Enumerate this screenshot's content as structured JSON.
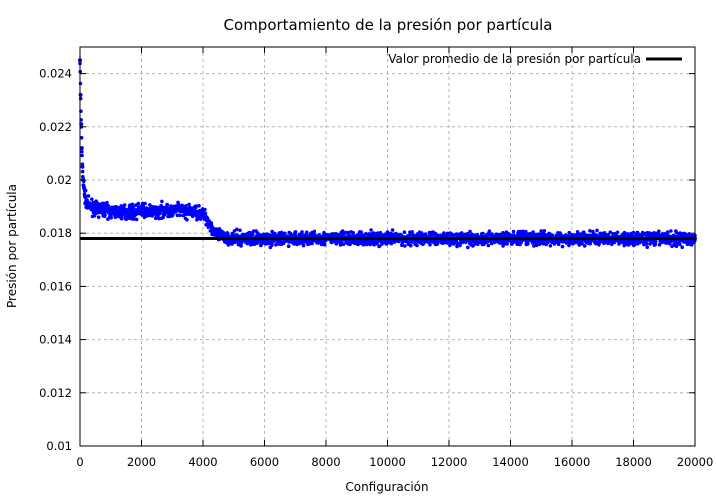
{
  "chart_data": {
    "type": "scatter",
    "title": "Comportamiento de la presión por partícula",
    "xlabel": "Configuración",
    "ylabel": "Presión por partícula",
    "xlim": [
      0,
      20000
    ],
    "ylim": [
      0.01,
      0.025
    ],
    "x_ticks": [
      "0",
      "2000",
      "4000",
      "6000",
      "8000",
      "10000",
      "12000",
      "14000",
      "16000",
      "18000",
      "20000"
    ],
    "y_ticks": [
      "0.01",
      "0.012",
      "0.014",
      "0.016",
      "0.018",
      "0.02",
      "0.022",
      "0.024"
    ],
    "grid": true,
    "legend_position": "top-right",
    "series": [
      {
        "name": "",
        "kind": "points",
        "color": "#0000ff",
        "x": [
          0,
          20,
          40,
          60,
          80,
          100,
          130,
          160,
          200,
          250,
          300,
          400,
          500,
          600,
          800,
          1000,
          1200,
          1500,
          1800,
          2000,
          2200,
          2500,
          2800,
          3000,
          3200,
          3500,
          3800,
          4000,
          4100,
          4200,
          4300,
          4400,
          4500,
          5000,
          6000,
          7000,
          8000,
          9000,
          10000,
          11000,
          12000,
          13000,
          14000,
          15000,
          16000,
          17000,
          18000,
          19000,
          20000
        ],
        "y": [
          0.0245,
          0.0232,
          0.0221,
          0.0212,
          0.0205,
          0.02,
          0.0197,
          0.0194,
          0.0192,
          0.0191,
          0.019,
          0.019,
          0.0189,
          0.0189,
          0.0189,
          0.0188,
          0.0188,
          0.0188,
          0.0188,
          0.0189,
          0.0188,
          0.0188,
          0.0189,
          0.0188,
          0.0189,
          0.0188,
          0.0188,
          0.0187,
          0.0186,
          0.0184,
          0.0182,
          0.018,
          0.0179,
          0.0178,
          0.0178,
          0.0178,
          0.0178,
          0.0178,
          0.0178,
          0.0178,
          0.0178,
          0.0178,
          0.0178,
          0.0178,
          0.0178,
          0.0178,
          0.0178,
          0.0178,
          0.0178
        ],
        "noise_band": [
          0.0003,
          0.0003,
          0.0003,
          0.0003,
          0.0003,
          0.0003,
          0.0003,
          0.0003,
          0.0003,
          0.0003,
          0.0003,
          0.0003,
          0.0003,
          0.0003,
          0.0003,
          0.0003,
          0.0003,
          0.0003,
          0.0003,
          0.0003,
          0.0003,
          0.0003,
          0.0003,
          0.0003,
          0.0003,
          0.0003,
          0.0003,
          0.0003,
          0.0003,
          0.0003,
          0.0003,
          0.0003,
          0.0003,
          0.0003,
          0.0003,
          0.0003,
          0.0003,
          0.0003,
          0.0003,
          0.0003,
          0.0003,
          0.0003,
          0.0003,
          0.0003,
          0.0003,
          0.0003,
          0.0003,
          0.0003,
          0.0003
        ]
      },
      {
        "name": "Valor promedio de la presión por partícula",
        "kind": "hline",
        "color": "#000000",
        "y": 0.0178
      }
    ]
  }
}
